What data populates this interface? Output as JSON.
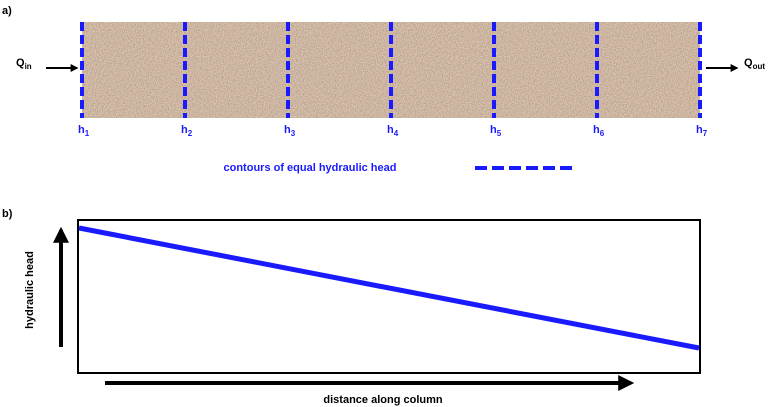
{
  "panel_a": {
    "label": "a)",
    "inflow": {
      "symbol": "Q",
      "subscript": "in"
    },
    "outflow": {
      "symbol": "Q",
      "subscript": "out"
    },
    "heads": [
      {
        "symbol": "h",
        "subscript": "1"
      },
      {
        "symbol": "h",
        "subscript": "2"
      },
      {
        "symbol": "h",
        "subscript": "3"
      },
      {
        "symbol": "h",
        "subscript": "4"
      },
      {
        "symbol": "h",
        "subscript": "5"
      },
      {
        "symbol": "h",
        "subscript": "6"
      },
      {
        "symbol": "h",
        "subscript": "7"
      }
    ],
    "legend": "contours of equal hydraulic head"
  },
  "panel_b": {
    "label": "b)",
    "y_axis": "hydraulic head",
    "x_axis": "distance along column"
  }
}
